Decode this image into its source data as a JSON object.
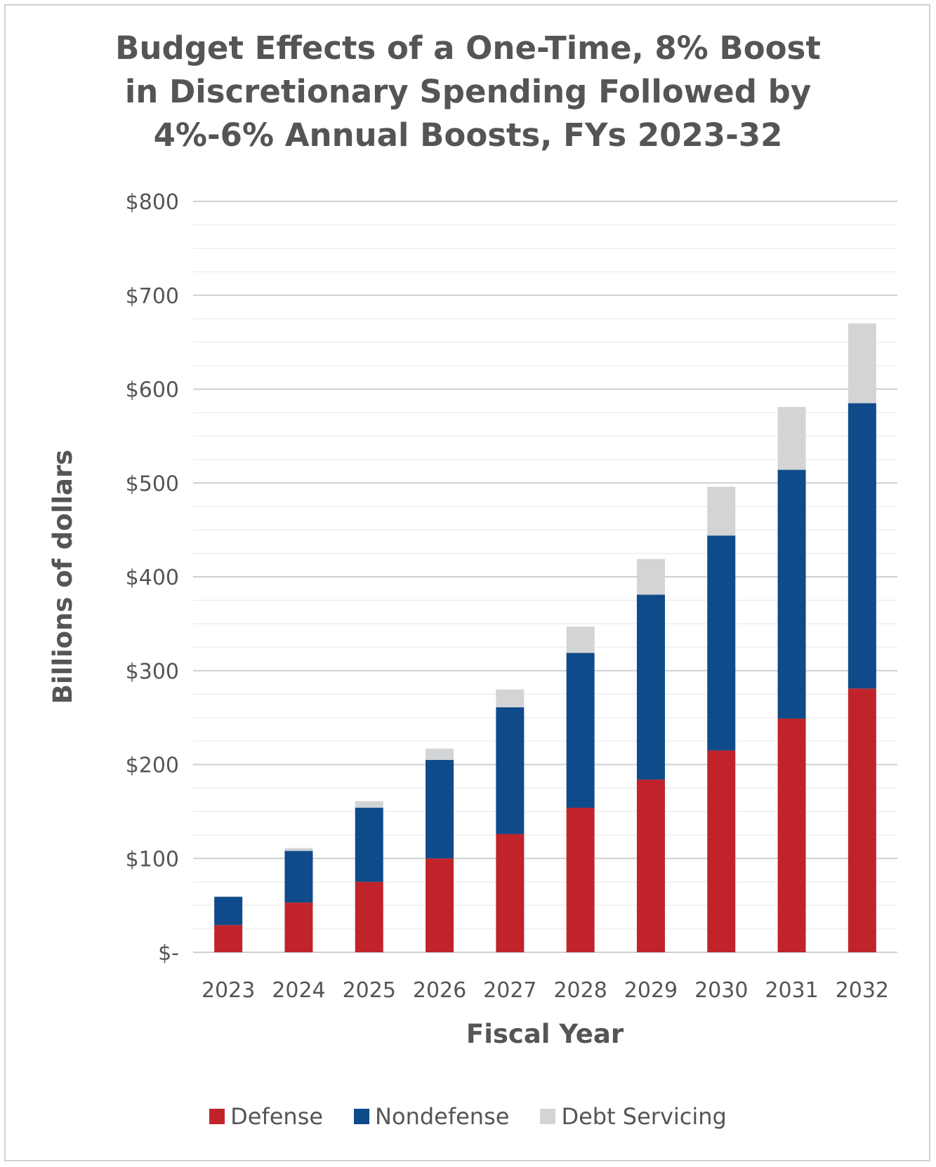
{
  "chart_data": {
    "type": "bar",
    "stacked": true,
    "title_lines": [
      "Budget Effects of a One-Time, 8% Boost",
      "in Discretionary Spending Followed by",
      "4%-6% Annual Boosts, FYs 2023-32"
    ],
    "xlabel": "Fiscal Year",
    "ylabel": "Billions of dollars",
    "categories": [
      "2023",
      "2024",
      "2025",
      "2026",
      "2027",
      "2028",
      "2029",
      "2030",
      "2031",
      "2032"
    ],
    "ylim": [
      0,
      800
    ],
    "y_ticks": [
      0,
      100,
      200,
      300,
      400,
      500,
      600,
      700,
      800
    ],
    "y_tick_labels": [
      "$-",
      "$100",
      "$200",
      "$300",
      "$400",
      "$500",
      "$600",
      "$700",
      "$800"
    ],
    "grid": true,
    "legend_position": "bottom",
    "series": [
      {
        "name": "Defense",
        "color": "#c0242a",
        "values": [
          29,
          53,
          75,
          100,
          126,
          154,
          184,
          215,
          249,
          281
        ]
      },
      {
        "name": "Nondefense",
        "color": "#0f4a8a",
        "values": [
          30,
          55,
          79,
          105,
          135,
          165,
          197,
          229,
          265,
          304
        ]
      },
      {
        "name": "Debt Servicing",
        "color": "#d3d4d6",
        "values": [
          1,
          3,
          7,
          12,
          19,
          28,
          38,
          52,
          67,
          85
        ]
      }
    ]
  }
}
